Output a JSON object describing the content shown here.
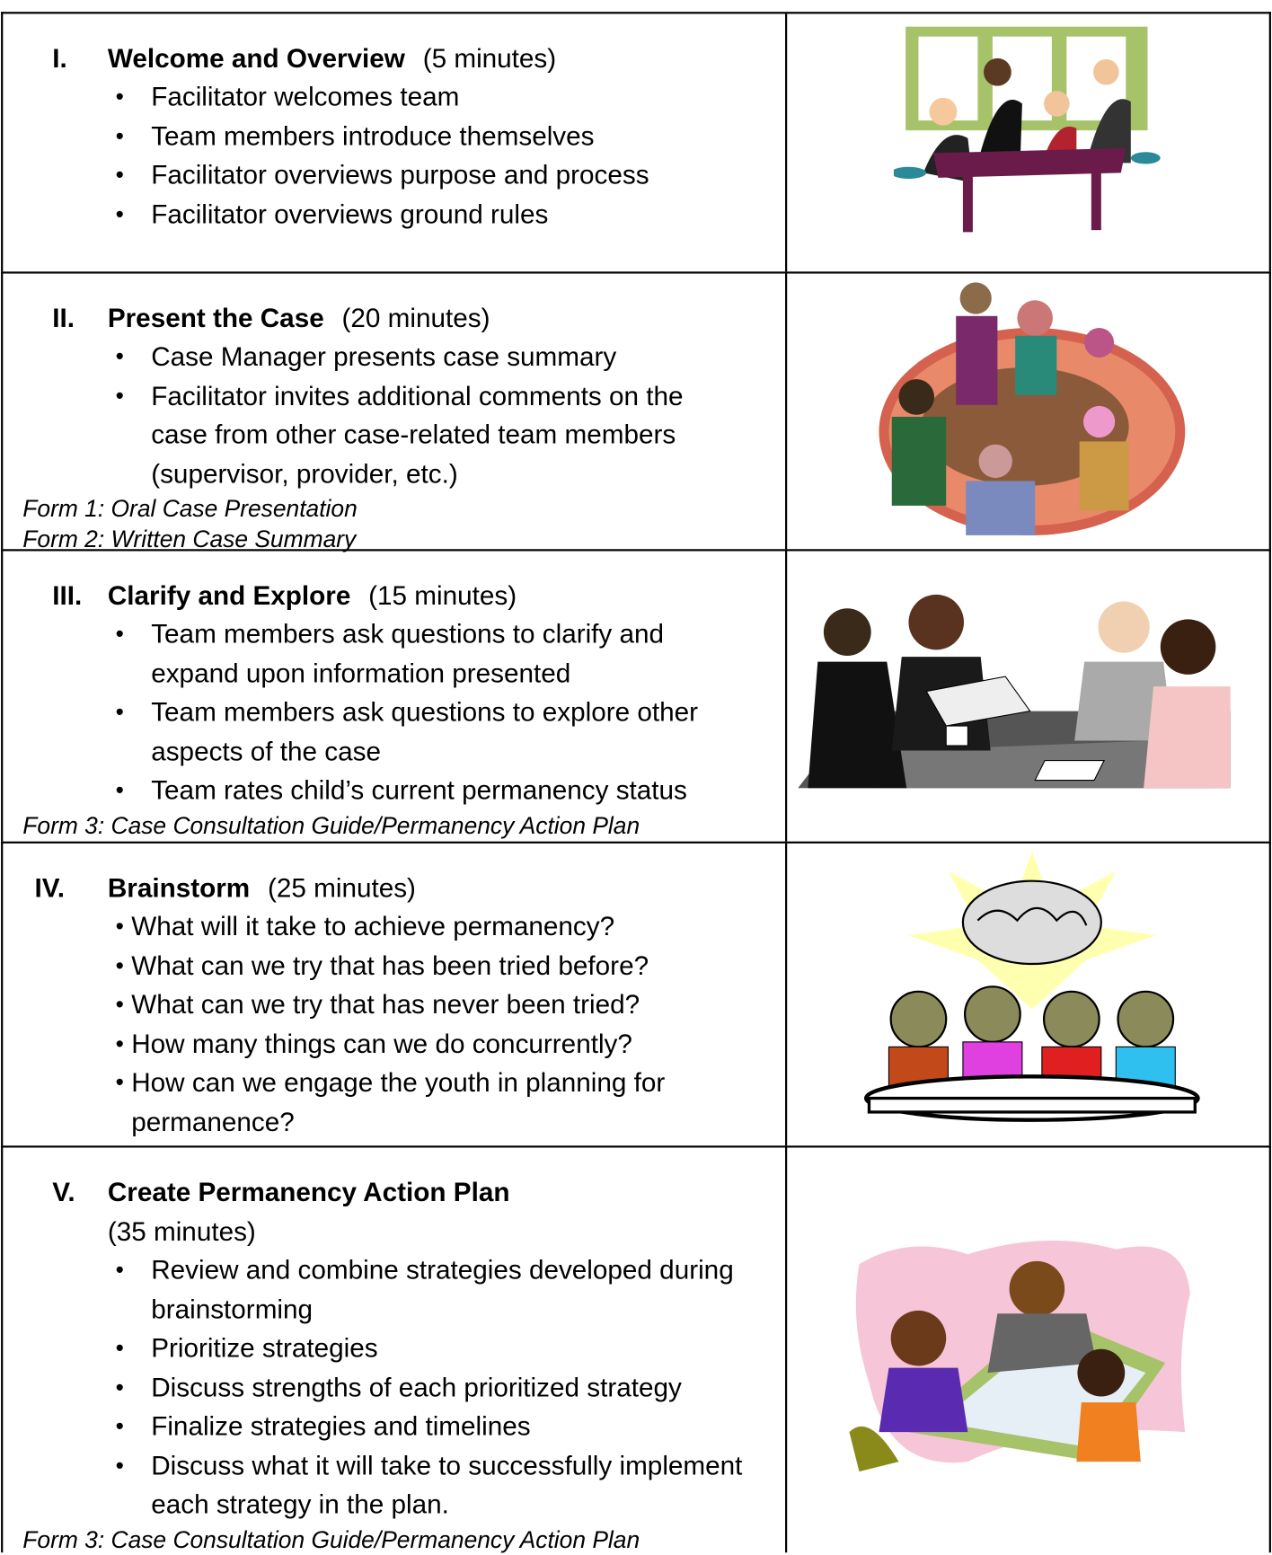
{
  "sections": [
    {
      "numeral": "I.",
      "title": "Welcome and Overview",
      "duration": "(5 minutes)",
      "bullets": [
        "Facilitator welcomes team",
        "Team members introduce themselves",
        "Facilitator overviews purpose and process",
        "Facilitator overviews ground rules"
      ],
      "forms": []
    },
    {
      "numeral": "II.",
      "title": "Present the Case",
      "duration": "(20 minutes)",
      "bullets": [
        "Case Manager presents case summary",
        "Facilitator invites additional comments on the case from other case-related team members (supervisor, provider, etc.)"
      ],
      "forms": [
        "Form 1: Oral Case Presentation",
        "Form 2: Written Case Summary"
      ]
    },
    {
      "numeral": "III.",
      "title": "Clarify and Explore",
      "duration": "(15 minutes)",
      "bullets": [
        "Team members ask questions to clarify and expand upon information presented",
        "Team members ask questions to explore other aspects of the case",
        "Team rates child’s current permanency status"
      ],
      "forms": [
        "Form 3: Case Consultation Guide/Permanency Action Plan"
      ]
    },
    {
      "numeral": "IV.",
      "title": "Brainstorm",
      "duration": "(25 minutes)",
      "bullets": [
        "What will it take to achieve permanency?",
        "What can we try that has been tried before?",
        "What can we try that has never been tried?",
        "How many things can we do concurrently?",
        "How can we engage the youth in planning for permanence?"
      ],
      "forms": []
    },
    {
      "numeral": "V.",
      "title": "Create Permanency Action Plan",
      "duration": "(35 minutes)",
      "bullets": [
        "Review and combine strategies developed during brainstorming",
        "Prioritize strategies",
        "Discuss strengths of each prioritized strategy",
        "Finalize strategies and timelines",
        "Discuss what it will take to successfully implement each strategy in the plan."
      ],
      "forms": [
        "Form 3: Case Consultation Guide/Permanency Action Plan"
      ]
    }
  ]
}
